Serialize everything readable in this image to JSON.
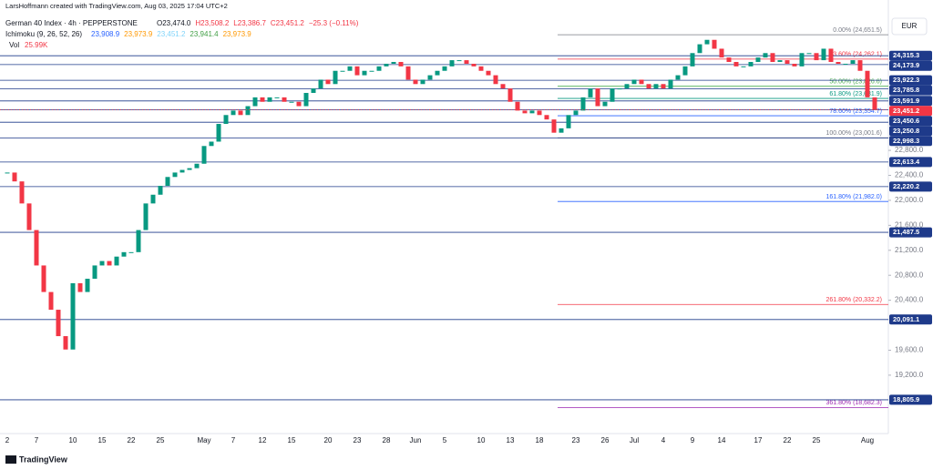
{
  "header": {
    "credit": "LarsHoffmann created with TradingView.com, Aug 03, 2025 17:04 UTC+2",
    "symbol": "German 40 Index · 4h · PEPPERSTONE",
    "ohlc": [
      "O23,474.0",
      "H23,508.2",
      "L23,386.7",
      "C23,451.2",
      "−25.3 (−0.11%)"
    ],
    "indicator": "Ichimoku (9, 26, 52, 26)",
    "indicator_values": [
      "23,908.9",
      "23,973.9",
      "23,451.2",
      "23,941.4",
      "23,973.9"
    ],
    "volume_label": "Vol",
    "volume": "25.99K",
    "currency": "EUR",
    "brand": "TradingView"
  },
  "chart_data": {
    "type": "candlestick",
    "ylim": [
      18265,
      25208
    ],
    "yticks": [
      {
        "value": 22800,
        "label": "22,800.0"
      },
      {
        "value": 22400,
        "label": "22,400.0"
      },
      {
        "value": 22000,
        "label": "22,000.0"
      },
      {
        "value": 21600,
        "label": "21,600.0"
      },
      {
        "value": 21200,
        "label": "21,200.0"
      },
      {
        "value": 20800,
        "label": "20,800.0"
      },
      {
        "value": 20400,
        "label": "20,400.0"
      },
      {
        "value": 19600,
        "label": "19,600.0"
      },
      {
        "value": 19200,
        "label": "19,200.0"
      }
    ],
    "categories": [
      "2",
      null,
      null,
      null,
      "7",
      null,
      null,
      null,
      null,
      "10",
      null,
      null,
      null,
      "15",
      null,
      null,
      null,
      "22",
      null,
      null,
      null,
      "25",
      null,
      null,
      null,
      null,
      null,
      "May",
      null,
      null,
      null,
      "7",
      null,
      null,
      null,
      "12",
      null,
      null,
      null,
      "15",
      null,
      null,
      null,
      null,
      "20",
      null,
      null,
      null,
      "23",
      null,
      null,
      null,
      "28",
      null,
      null,
      null,
      "Jun",
      null,
      null,
      null,
      "5",
      null,
      null,
      null,
      null,
      "10",
      null,
      null,
      null,
      "13",
      null,
      null,
      null,
      "18",
      null,
      null,
      null,
      null,
      "23",
      null,
      null,
      null,
      "26",
      null,
      null,
      null,
      "Jul",
      null,
      null,
      null,
      "4",
      null,
      null,
      null,
      "9",
      null,
      null,
      null,
      "14",
      null,
      null,
      null,
      null,
      "17",
      null,
      null,
      null,
      "22",
      null,
      null,
      null,
      "25",
      null,
      null,
      null,
      null,
      null,
      null,
      "Aug",
      null
    ],
    "values": [
      22445,
      22303,
      21950,
      21524,
      20957,
      20532,
      20248,
      19825,
      19611,
      20673,
      20532,
      20744,
      20957,
      21028,
      20957,
      21099,
      21170,
      21170,
      21524,
      21950,
      22090,
      22232,
      22374,
      22445,
      22487,
      22515,
      22586,
      22870,
      22940,
      23224,
      23366,
      23437,
      23366,
      23508,
      23649,
      23578,
      23649,
      23649,
      23578,
      23578,
      23508,
      23720,
      23791,
      23932,
      23862,
      24074,
      24074,
      24145,
      24003,
      24074,
      24074,
      24145,
      24187,
      24216,
      24145,
      23932,
      23862,
      23932,
      24003,
      24074,
      24145,
      24244,
      24244,
      24187,
      24145,
      24074,
      24003,
      23862,
      23791,
      23578,
      23437,
      23394,
      23437,
      23366,
      23295,
      23083,
      23153,
      23366,
      23437,
      23649,
      23791,
      23508,
      23578,
      23791,
      23791,
      23862,
      23932,
      23862,
      23791,
      23862,
      23791,
      23932,
      24003,
      24145,
      24358,
      24499,
      24570,
      24428,
      24287,
      24216,
      24145,
      24145,
      24216,
      24287,
      24358,
      24216,
      24244,
      24187,
      24145,
      24358,
      24358,
      24244,
      24428,
      24216,
      24187,
      24187,
      24244,
      24074,
      23649,
      23451
    ],
    "up_color": "#089981",
    "down_color": "#f23645",
    "levels": [
      {
        "value": 24315.3,
        "label": "24,315.3"
      },
      {
        "value": 24173.9,
        "label": "24,173.9"
      },
      {
        "value": 23922.3,
        "label": "23,922.3"
      },
      {
        "value": 23785.8,
        "label": "23,785.8"
      },
      {
        "value": 23591.9,
        "label": "23,591.9"
      },
      {
        "value": 23450.6,
        "label": "23,450.6"
      },
      {
        "value": 23250.8,
        "label": "23,250.8"
      },
      {
        "value": 22998.3,
        "label": "22,998.3"
      },
      {
        "value": 22613.4,
        "label": "22,613.4"
      },
      {
        "value": 22220.2,
        "label": "22,220.2"
      },
      {
        "value": 21487.5,
        "label": "21,487.5"
      },
      {
        "value": 20091.1,
        "label": "20,091.1"
      },
      {
        "value": 18805.9,
        "label": "18,805.9"
      }
    ],
    "level_color": "#1e3a8a",
    "last_price": {
      "value": 23451.2,
      "label": "23,451.2"
    },
    "last_color": "#f23645",
    "fib": [
      {
        "value": 24651.5,
        "label": "0.00% (24,651.5)",
        "color": "#787b86"
      },
      {
        "value": 24262.1,
        "label": "23.60% (24,262.1)",
        "color": "#f23645"
      },
      {
        "value": 23826.6,
        "label": "50.00% (23,826.6)",
        "color": "#4caf50"
      },
      {
        "value": 23631.9,
        "label": "61.80% (23,631.9)",
        "color": "#089981"
      },
      {
        "value": 23354.7,
        "label": "78.60% (23,354.7)",
        "color": "#2962ff"
      },
      {
        "value": 23001.6,
        "label": "100.00% (23,001.6)",
        "color": "#787b86"
      },
      {
        "value": 21982.0,
        "label": "161.80% (21,982.0)",
        "color": "#2962ff"
      },
      {
        "value": 20332.2,
        "label": "261.80% (20,332.2)",
        "color": "#f23645"
      },
      {
        "value": 18682.3,
        "label": "361.80% (18,682.3)",
        "color": "#9c27b0"
      }
    ]
  }
}
